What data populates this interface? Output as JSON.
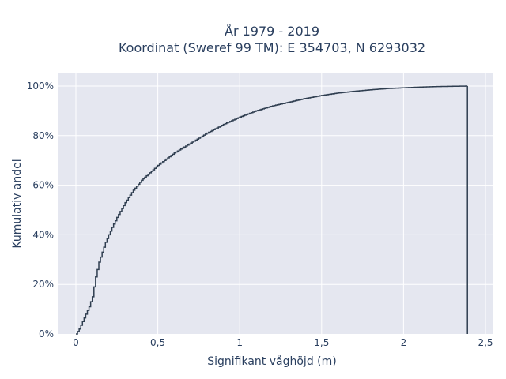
{
  "chart_data": {
    "type": "line",
    "subtype": "empirical-cdf-step",
    "title_line1": "År 1979 - 2019",
    "title_line2": "Koordinat (Sweref 99 TM): E 354703, N 6293032",
    "xlabel": "Signifikant våghöjd (m)",
    "ylabel": "Kumulativ andel",
    "xlim": [
      -0.1,
      2.5
    ],
    "ylim": [
      0,
      1.05
    ],
    "x_ticks": [
      0,
      0.5,
      1,
      1.5,
      2,
      2.5
    ],
    "x_tick_labels": [
      "0",
      "0,5",
      "1",
      "1,5",
      "2",
      "2,5"
    ],
    "y_ticks": [
      0,
      0.2,
      0.4,
      0.6,
      0.8,
      1.0
    ],
    "y_tick_labels": [
      "0%",
      "20%",
      "40%",
      "60%",
      "80%",
      "100%"
    ],
    "grid": true,
    "x_max_value": 2.39,
    "series": [
      {
        "x": [
          0.0,
          0.01,
          0.02,
          0.03,
          0.04,
          0.05,
          0.06,
          0.07,
          0.08,
          0.09,
          0.1,
          0.11,
          0.12,
          0.13,
          0.14,
          0.15,
          0.16,
          0.17,
          0.18,
          0.2,
          0.22,
          0.25,
          0.3,
          0.35,
          0.4,
          0.45,
          0.5,
          0.6,
          0.7,
          0.8,
          0.9,
          1.0,
          1.1,
          1.2,
          1.3,
          1.4,
          1.5,
          1.6,
          1.7,
          1.8,
          1.9,
          2.0,
          2.1,
          2.2,
          2.3,
          2.39
        ],
        "y": [
          0.0,
          0.01,
          0.02,
          0.035,
          0.05,
          0.065,
          0.08,
          0.095,
          0.11,
          0.13,
          0.15,
          0.19,
          0.23,
          0.26,
          0.29,
          0.31,
          0.33,
          0.35,
          0.37,
          0.4,
          0.43,
          0.47,
          0.53,
          0.58,
          0.62,
          0.65,
          0.68,
          0.73,
          0.77,
          0.81,
          0.845,
          0.875,
          0.9,
          0.92,
          0.935,
          0.95,
          0.962,
          0.972,
          0.979,
          0.985,
          0.99,
          0.993,
          0.996,
          0.998,
          0.999,
          1.0
        ]
      }
    ],
    "colors": {
      "line": "#2f3e50",
      "plot_bg": "#e5e7f0",
      "grid": "#ffffff",
      "text": "#2a3f5f"
    }
  }
}
